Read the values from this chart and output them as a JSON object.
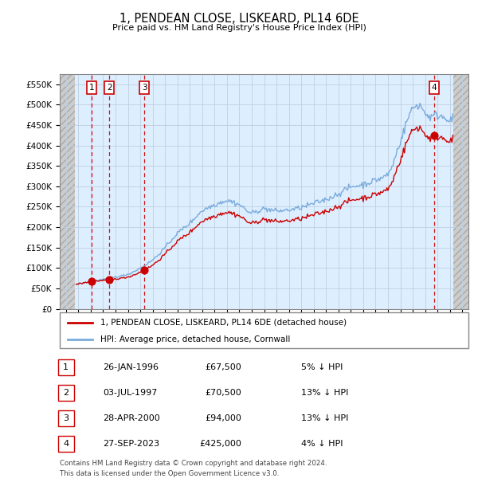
{
  "title": "1, PENDEAN CLOSE, LISKEARD, PL14 6DE",
  "subtitle": "Price paid vs. HM Land Registry's House Price Index (HPI)",
  "legend_line1": "1, PENDEAN CLOSE, LISKEARD, PL14 6DE (detached house)",
  "legend_line2": "HPI: Average price, detached house, Cornwall",
  "footer1": "Contains HM Land Registry data © Crown copyright and database right 2024.",
  "footer2": "This data is licensed under the Open Government Licence v3.0.",
  "transactions": [
    {
      "num": 1,
      "date": "26-JAN-1996",
      "price": 67500,
      "pct": "5%",
      "year": 1996.07
    },
    {
      "num": 2,
      "date": "03-JUL-1997",
      "price": 70500,
      "pct": "13%",
      "year": 1997.5
    },
    {
      "num": 3,
      "date": "28-APR-2000",
      "price": 94000,
      "pct": "13%",
      "year": 2000.32
    },
    {
      "num": 4,
      "date": "27-SEP-2023",
      "price": 425000,
      "pct": "4%",
      "year": 2023.74
    }
  ],
  "hpi_color": "#7aabdb",
  "price_color": "#cc0000",
  "dashed_color": "#cc0000",
  "box_color": "#cc0000",
  "bg_plot": "#ddeeff",
  "grid_color": "#c0d0e0",
  "ylim": [
    0,
    575000
  ],
  "yticks": [
    0,
    50000,
    100000,
    150000,
    200000,
    250000,
    300000,
    350000,
    400000,
    450000,
    500000,
    550000
  ],
  "xlim_start": 1993.5,
  "xlim_end": 2026.5,
  "hatch_left_end": 1994.75,
  "hatch_right_start": 2025.25
}
